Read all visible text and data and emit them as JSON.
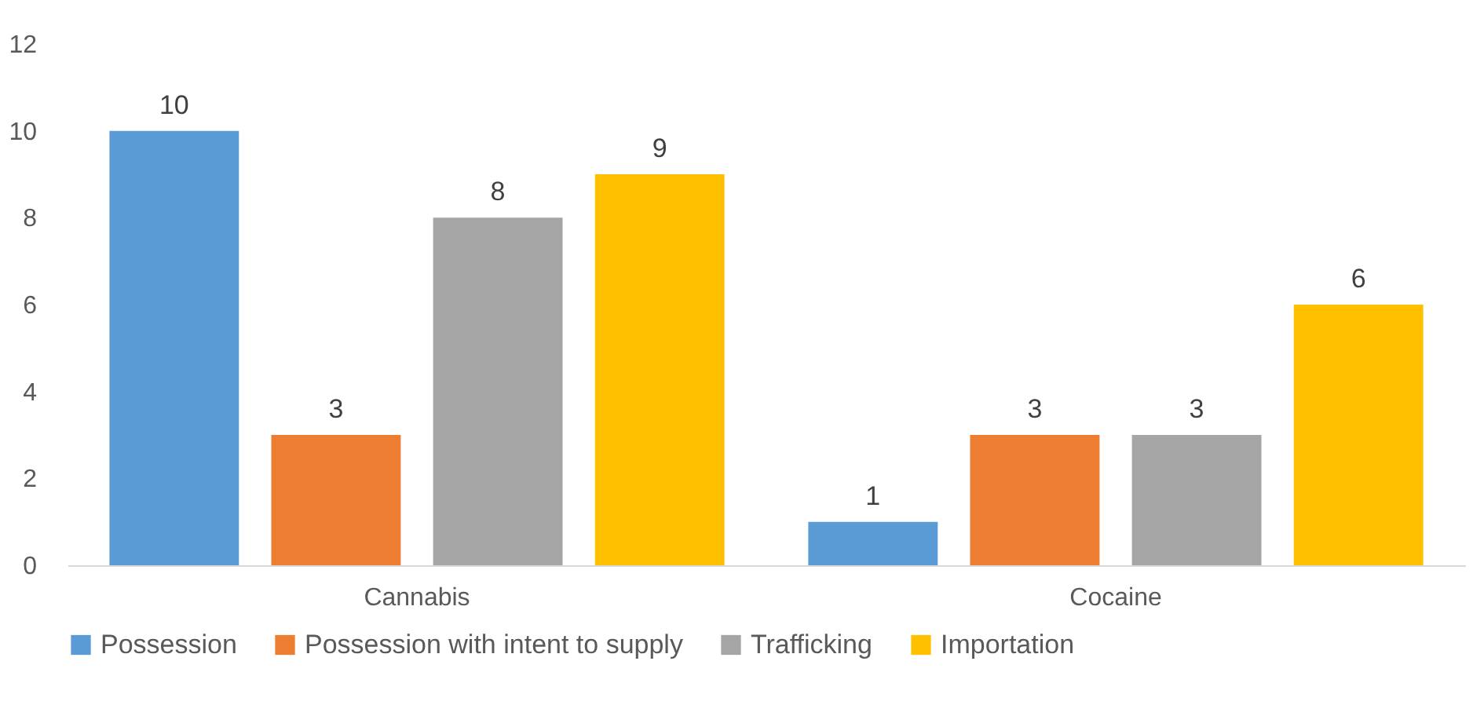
{
  "chart_data": {
    "type": "bar",
    "categories": [
      "Cannabis",
      "Cocaine"
    ],
    "series": [
      {
        "name": "Possession",
        "color": "#5b9bd5",
        "values": [
          10,
          1
        ]
      },
      {
        "name": "Possession with intent to supply",
        "color": "#ed7d31",
        "values": [
          3,
          3
        ]
      },
      {
        "name": "Trafficking",
        "color": "#a5a5a5",
        "values": [
          8,
          3
        ]
      },
      {
        "name": "Importation",
        "color": "#ffc000",
        "values": [
          9,
          6
        ]
      }
    ],
    "ylim": [
      0,
      12
    ],
    "yticks": [
      0,
      2,
      4,
      6,
      8,
      10,
      12
    ],
    "data_labels": true,
    "legend": "bottom"
  }
}
